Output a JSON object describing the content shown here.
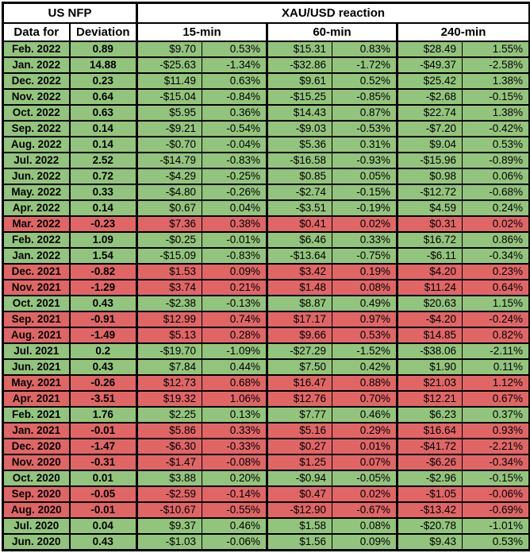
{
  "table": {
    "header": {
      "us_nfp": "US NFP",
      "xau_reaction": "XAU/USD reaction",
      "data_for": "Data for",
      "deviation": "Deviation",
      "timeframes": [
        "15-min",
        "60-min",
        "240-min"
      ]
    },
    "colors": {
      "positive_row": "#93C47D",
      "negative_row": "#E06666",
      "grid": "#000000",
      "header_bg": "#FFFFFF"
    }
  },
  "chart_data": {
    "type": "table",
    "title": "US NFP deviation vs XAU/USD reaction",
    "columns": [
      "Data for",
      "Deviation",
      "15-min $",
      "15-min %",
      "60-min $",
      "60-min %",
      "240-min $",
      "240-min %"
    ],
    "rows": [
      {
        "tone": "positive",
        "cells": [
          "Feb. 2022",
          "0.89",
          "$9.70",
          "0.53%",
          "$15.31",
          "0.83%",
          "$28.49",
          "1.55%"
        ]
      },
      {
        "tone": "positive",
        "cells": [
          "Jan. 2022",
          "14.88",
          "-$25.63",
          "-1.34%",
          "-$32.86",
          "-1.72%",
          "-$49.37",
          "-2.58%"
        ]
      },
      {
        "tone": "positive",
        "cells": [
          "Dec. 2022",
          "0.23",
          "$11.49",
          "0.63%",
          "$9.61",
          "0.52%",
          "$25.42",
          "1.38%"
        ]
      },
      {
        "tone": "positive",
        "cells": [
          "Nov. 2022",
          "0.64",
          "-$15.04",
          "-0.84%",
          "-$15.25",
          "-0.85%",
          "-$2.68",
          "-0.15%"
        ]
      },
      {
        "tone": "positive",
        "cells": [
          "Oct. 2022",
          "0.63",
          "$5.95",
          "0.36%",
          "$14.43",
          "0.87%",
          "$22.74",
          "1.38%"
        ]
      },
      {
        "tone": "positive",
        "cells": [
          "Sep. 2022",
          "0.14",
          "-$9.21",
          "-0.54%",
          "-$9.03",
          "-0.53%",
          "-$7.20",
          "-0.42%"
        ]
      },
      {
        "tone": "positive",
        "cells": [
          "Aug. 2022",
          "0.14",
          "-$0.70",
          "-0.04%",
          "$5.36",
          "0.31%",
          "$9.04",
          "0.53%"
        ]
      },
      {
        "tone": "positive",
        "cells": [
          "Jul. 2022",
          "2.52",
          "-$14.79",
          "-0.83%",
          "-$16.58",
          "-0.93%",
          "-$15.96",
          "-0.89%"
        ]
      },
      {
        "tone": "positive",
        "cells": [
          "Jun. 2022",
          "0.72",
          "-$4.29",
          "-0.25%",
          "$0.85",
          "0.05%",
          "$0.98",
          "0.06%"
        ]
      },
      {
        "tone": "positive",
        "cells": [
          "May. 2022",
          "0.33",
          "-$4.80",
          "-0.26%",
          "-$2.74",
          "-0.15%",
          "-$12.72",
          "-0.68%"
        ]
      },
      {
        "tone": "positive",
        "cells": [
          "Apr. 2022",
          "0.14",
          "$0.67",
          "0.04%",
          "-$3.51",
          "-0.19%",
          "$4.59",
          "0.24%"
        ]
      },
      {
        "tone": "negative",
        "cells": [
          "Mar. 2022",
          "-0.23",
          "$7.36",
          "0.38%",
          "$0.41",
          "0.02%",
          "$0.31",
          "0.02%"
        ]
      },
      {
        "tone": "positive",
        "cells": [
          "Feb. 2022",
          "1.09",
          "-$0.25",
          "-0.01%",
          "$6.46",
          "0.33%",
          "$16.72",
          "0.86%"
        ]
      },
      {
        "tone": "positive",
        "cells": [
          "Jan. 2022",
          "1.54",
          "-$15.09",
          "-0.83%",
          "-$13.64",
          "-0.75%",
          "-$6.11",
          "-0.34%"
        ]
      },
      {
        "tone": "negative",
        "cells": [
          "Dec. 2021",
          "-0.82",
          "$1.53",
          "0.09%",
          "$3.42",
          "0.19%",
          "$4.20",
          "0.23%"
        ]
      },
      {
        "tone": "negative",
        "cells": [
          "Nov. 2021",
          "-1.29",
          "$3.74",
          "0.21%",
          "$1.48",
          "0.08%",
          "$11.24",
          "0.64%"
        ]
      },
      {
        "tone": "positive",
        "cells": [
          "Oct. 2021",
          "0.43",
          "-$2.38",
          "-0.13%",
          "$8.87",
          "0.49%",
          "$20.63",
          "1.15%"
        ]
      },
      {
        "tone": "negative",
        "cells": [
          "Sep. 2021",
          "-0.91",
          "$12.99",
          "0.74%",
          "$17.17",
          "0.97%",
          "-$4.20",
          "-0.24%"
        ]
      },
      {
        "tone": "negative",
        "cells": [
          "Aug. 2021",
          "-1.49",
          "$5.13",
          "0.28%",
          "$9.66",
          "0.53%",
          "$14.85",
          "0.82%"
        ]
      },
      {
        "tone": "positive",
        "cells": [
          "Jul. 2021",
          "0.2",
          "-$19.70",
          "-1.09%",
          "-$27.29",
          "-1.52%",
          "-$38.06",
          "-2.11%"
        ]
      },
      {
        "tone": "positive",
        "cells": [
          "Jun. 2021",
          "0.43",
          "$7.84",
          "0.44%",
          "$7.50",
          "0.42%",
          "$1.90",
          "0.11%"
        ]
      },
      {
        "tone": "negative",
        "cells": [
          "May. 2021",
          "-0.26",
          "$12.73",
          "0.68%",
          "$16.47",
          "0.88%",
          "$21.03",
          "1.12%"
        ]
      },
      {
        "tone": "negative",
        "cells": [
          "Apr. 2021",
          "-3.51",
          "$19.32",
          "1.06%",
          "$12.76",
          "0.70%",
          "$12.21",
          "0.67%"
        ]
      },
      {
        "tone": "positive",
        "cells": [
          "Feb. 2021",
          "1.76",
          "$2.25",
          "0.13%",
          "$7.77",
          "0.46%",
          "$6.23",
          "0.37%"
        ]
      },
      {
        "tone": "negative",
        "cells": [
          "Jan. 2021",
          "-0.01",
          "$5.86",
          "0.33%",
          "$5.16",
          "0.29%",
          "$16.64",
          "0.93%"
        ]
      },
      {
        "tone": "negative",
        "cells": [
          "Dec. 2020",
          "-1.47",
          "-$6.30",
          "-0.33%",
          "$0.27",
          "0.01%",
          "-$41.72",
          "-2.21%"
        ]
      },
      {
        "tone": "negative",
        "cells": [
          "Nov. 2020",
          "-0.31",
          "-$1.47",
          "-0.08%",
          "$1.25",
          "0.07%",
          "-$6.26",
          "-0.34%"
        ]
      },
      {
        "tone": "positive",
        "cells": [
          "Oct. 2020",
          "0.01",
          "$3.88",
          "0.20%",
          "-$0.94",
          "-0.05%",
          "-$2.96",
          "-0.15%"
        ]
      },
      {
        "tone": "negative",
        "cells": [
          "Sep. 2020",
          "-0.05",
          "-$2.59",
          "-0.14%",
          "$0.47",
          "0.02%",
          "-$1.05",
          "-0.06%"
        ]
      },
      {
        "tone": "negative",
        "cells": [
          "Aug. 2020",
          "-0.01",
          "-$10.67",
          "-0.55%",
          "-$12.90",
          "-0.67%",
          "-$13.42",
          "-0.69%"
        ]
      },
      {
        "tone": "positive",
        "cells": [
          "Jul. 2020",
          "0.04",
          "$9.37",
          "0.46%",
          "$1.58",
          "0.08%",
          "-$20.78",
          "-1.01%"
        ]
      },
      {
        "tone": "positive",
        "cells": [
          "Jun. 2020",
          "0.43",
          "-$1.03",
          "-0.06%",
          "$1.56",
          "0.09%",
          "$9.43",
          "0.53%"
        ]
      }
    ],
    "layout": {
      "positive_row_color": "#93C47D",
      "negative_row_color": "#E06666",
      "gridlines": true
    }
  }
}
